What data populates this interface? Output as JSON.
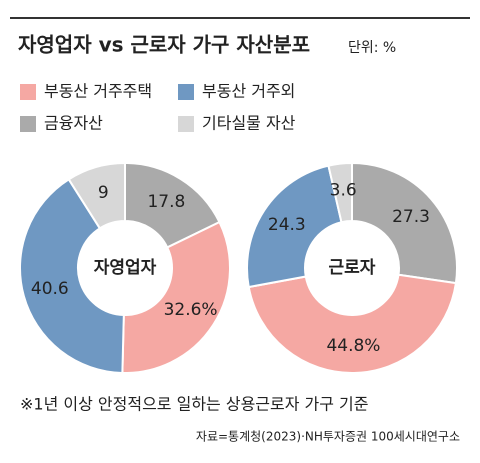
{
  "title": "자영업자 vs 근로자 가구 자산분포",
  "subtitle": "단위: %",
  "legend": {
    "names": [
      "부동산 거주주택",
      "부동산 거주외",
      "금융자산",
      "기타실물 자산"
    ],
    "colors": [
      "#f5a8a3",
      "#6f98c2",
      "#aaaaaa",
      "#d7d7d7"
    ]
  },
  "chart_data": [
    {
      "type": "pie",
      "donut": true,
      "label": "자영업자",
      "values": [
        32.6,
        40.6,
        17.8,
        9
      ],
      "value_labels": [
        "32.6%",
        "40.6",
        "17.8",
        "9"
      ]
    },
    {
      "type": "pie",
      "donut": true,
      "label": "근로자",
      "values": [
        44.8,
        24.3,
        27.3,
        3.6
      ],
      "value_labels": [
        "44.8%",
        "24.3",
        "27.3",
        "3.6"
      ]
    }
  ],
  "note": "※1년 이상 안정적으로 일하는 상용근로자 가구 기준",
  "source": "자료=통계청(2023)·NH투자증권 100세시대연구소"
}
